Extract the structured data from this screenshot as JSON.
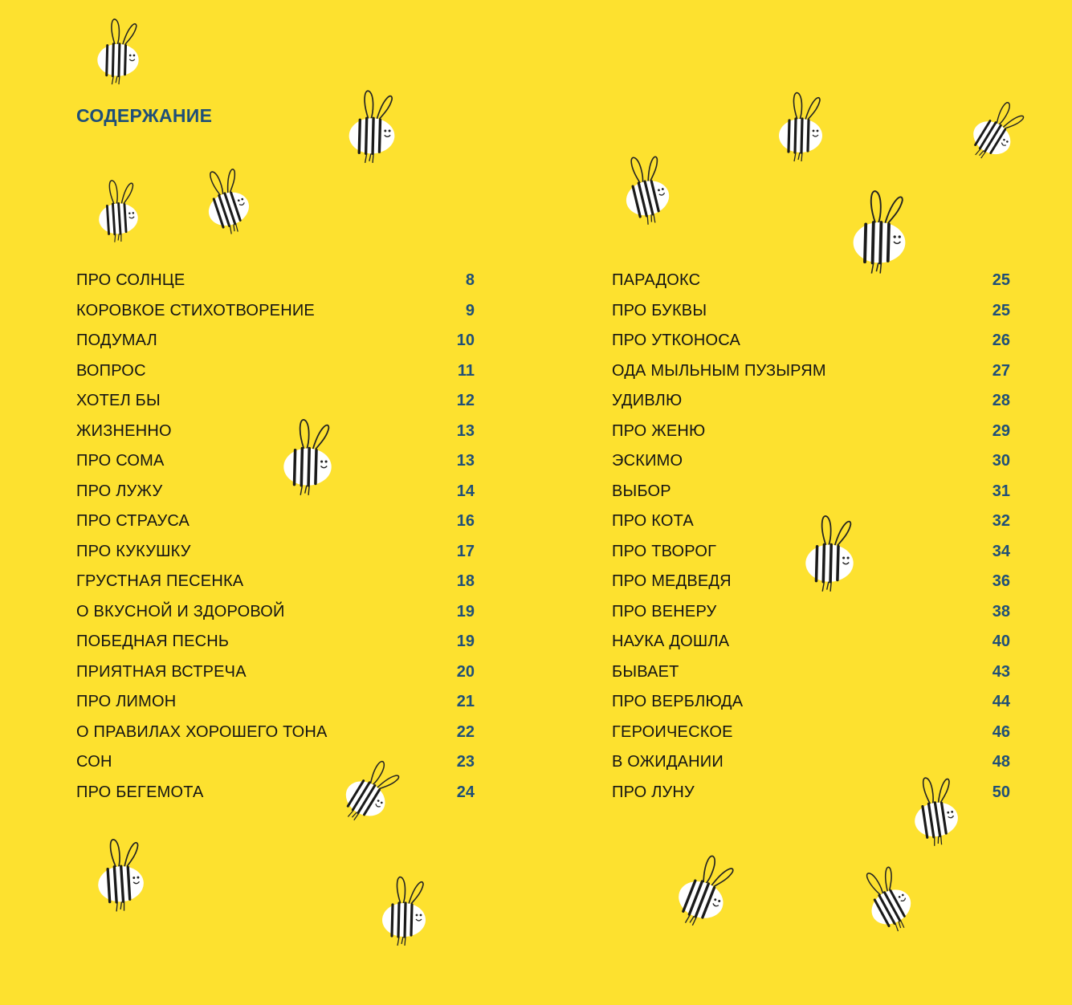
{
  "heading": "СОДЕРЖАНИЕ",
  "colors": {
    "background": "#fde12f",
    "heading": "#1f4f78",
    "page_number": "#1f4f78",
    "text": "#141414"
  },
  "toc": {
    "left": [
      {
        "title": "ПРО СОЛНЦЕ",
        "page": "8"
      },
      {
        "title": "КОРОВКОЕ СТИХОТВОРЕНИЕ",
        "page": "9"
      },
      {
        "title": "ПОДУМАЛ",
        "page": "10"
      },
      {
        "title": "ВОПРОС",
        "page": "11"
      },
      {
        "title": "ХОТЕЛ БЫ",
        "page": "12"
      },
      {
        "title": "ЖИЗНЕННО",
        "page": "13"
      },
      {
        "title": "ПРО СОМА",
        "page": "13"
      },
      {
        "title": "ПРО ЛУЖУ",
        "page": "14"
      },
      {
        "title": "ПРО СТРАУСА",
        "page": "16"
      },
      {
        "title": "ПРО КУКУШКУ",
        "page": "17"
      },
      {
        "title": "ГРУСТНАЯ ПЕСЕНКА",
        "page": "18"
      },
      {
        "title": "О ВКУСНОЙ И ЗДОРОВОЙ",
        "page": "19"
      },
      {
        "title": "ПОБЕДНАЯ ПЕСНЬ",
        "page": "19"
      },
      {
        "title": "ПРИЯТНАЯ ВСТРЕЧА",
        "page": "20"
      },
      {
        "title": "ПРО ЛИМОН",
        "page": "21"
      },
      {
        "title": "О ПРАВИЛАХ ХОРОШЕГО ТОНА",
        "page": "22"
      },
      {
        "title": "СОН",
        "page": "23"
      },
      {
        "title": "ПРО БЕГЕМОТА",
        "page": "24"
      }
    ],
    "right": [
      {
        "title": "ПАРАДОКС",
        "page": "25"
      },
      {
        "title": "ПРО БУКВЫ",
        "page": "25"
      },
      {
        "title": "ПРО УТКОНОСА",
        "page": "26"
      },
      {
        "title": "ОДА МЫЛЬНЫМ ПУЗЫРЯМ",
        "page": "27"
      },
      {
        "title": "УДИВЛЮ",
        "page": "28"
      },
      {
        "title": "ПРО ЖЕНЮ",
        "page": "29"
      },
      {
        "title": "ЭСКИМО",
        "page": "30"
      },
      {
        "title": "ВЫБОР",
        "page": "31"
      },
      {
        "title": "ПРО КОТА",
        "page": "32"
      },
      {
        "title": "ПРО ТВОРОГ",
        "page": "34"
      },
      {
        "title": "ПРО МЕДВЕДЯ",
        "page": "36"
      },
      {
        "title": "ПРО ВЕНЕРУ",
        "page": "38"
      },
      {
        "title": "НАУКА ДОШЛА",
        "page": "40"
      },
      {
        "title": "БЫВАЕТ",
        "page": "43"
      },
      {
        "title": "ПРО ВЕРБЛЮДА",
        "page": "44"
      },
      {
        "title": "ГЕРОИЧЕСКОЕ",
        "page": "46"
      },
      {
        "title": "В ОЖИДАНИИ",
        "page": "48"
      },
      {
        "title": "ПРО ЛУНУ",
        "page": "50"
      }
    ]
  },
  "decorations": {
    "icon": "bee-icon"
  }
}
